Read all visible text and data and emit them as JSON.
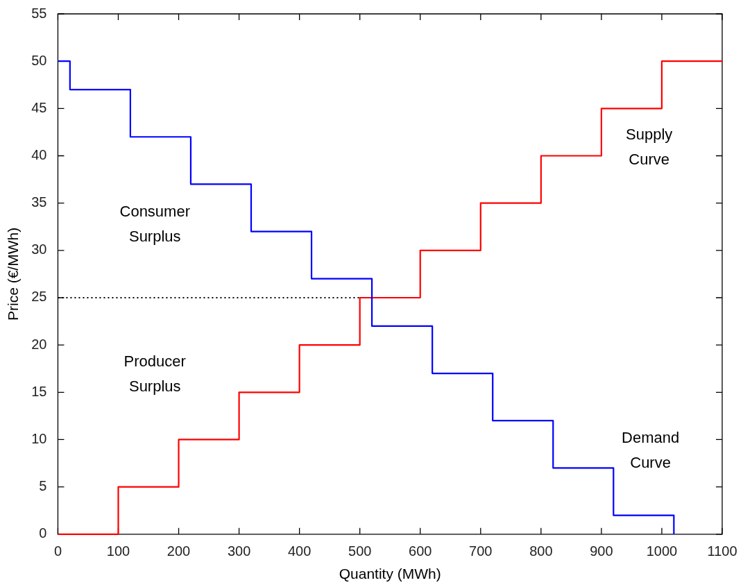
{
  "chart_data": {
    "type": "step",
    "xlabel": "Quantity (MWh)",
    "ylabel": "Price (€/MWh)",
    "xlim": [
      0,
      1100
    ],
    "xticks": [
      0,
      100,
      200,
      300,
      400,
      500,
      600,
      700,
      800,
      900,
      1000,
      1100
    ],
    "ylim": [
      0,
      55
    ],
    "yticks": [
      0,
      5,
      10,
      15,
      20,
      25,
      30,
      35,
      40,
      45,
      50,
      55
    ],
    "marker": "none",
    "legend": false,
    "series": [
      {
        "name": "Demand Curve",
        "color": "#0000ff",
        "x": [
          0,
          20,
          120,
          220,
          320,
          420,
          520,
          620,
          720,
          820,
          920,
          1020
        ],
        "values": [
          50,
          47,
          42,
          37,
          32,
          27,
          22,
          17,
          12,
          7,
          2,
          0
        ]
      },
      {
        "name": "Supply Curve",
        "color": "#ff0000",
        "x": [
          0,
          100,
          200,
          300,
          400,
          500,
          600,
          700,
          800,
          900,
          1000,
          1100
        ],
        "values": [
          0,
          5,
          10,
          15,
          20,
          25,
          30,
          35,
          40,
          45,
          50,
          50
        ]
      },
      {
        "type": "line",
        "color": "#000000",
        "line_style": "dotted",
        "x": [
          0,
          500
        ],
        "values": [
          25,
          25
        ]
      }
    ],
    "annotations": [
      "Consumer Surplus",
      "Producer Surplus"
    ]
  }
}
